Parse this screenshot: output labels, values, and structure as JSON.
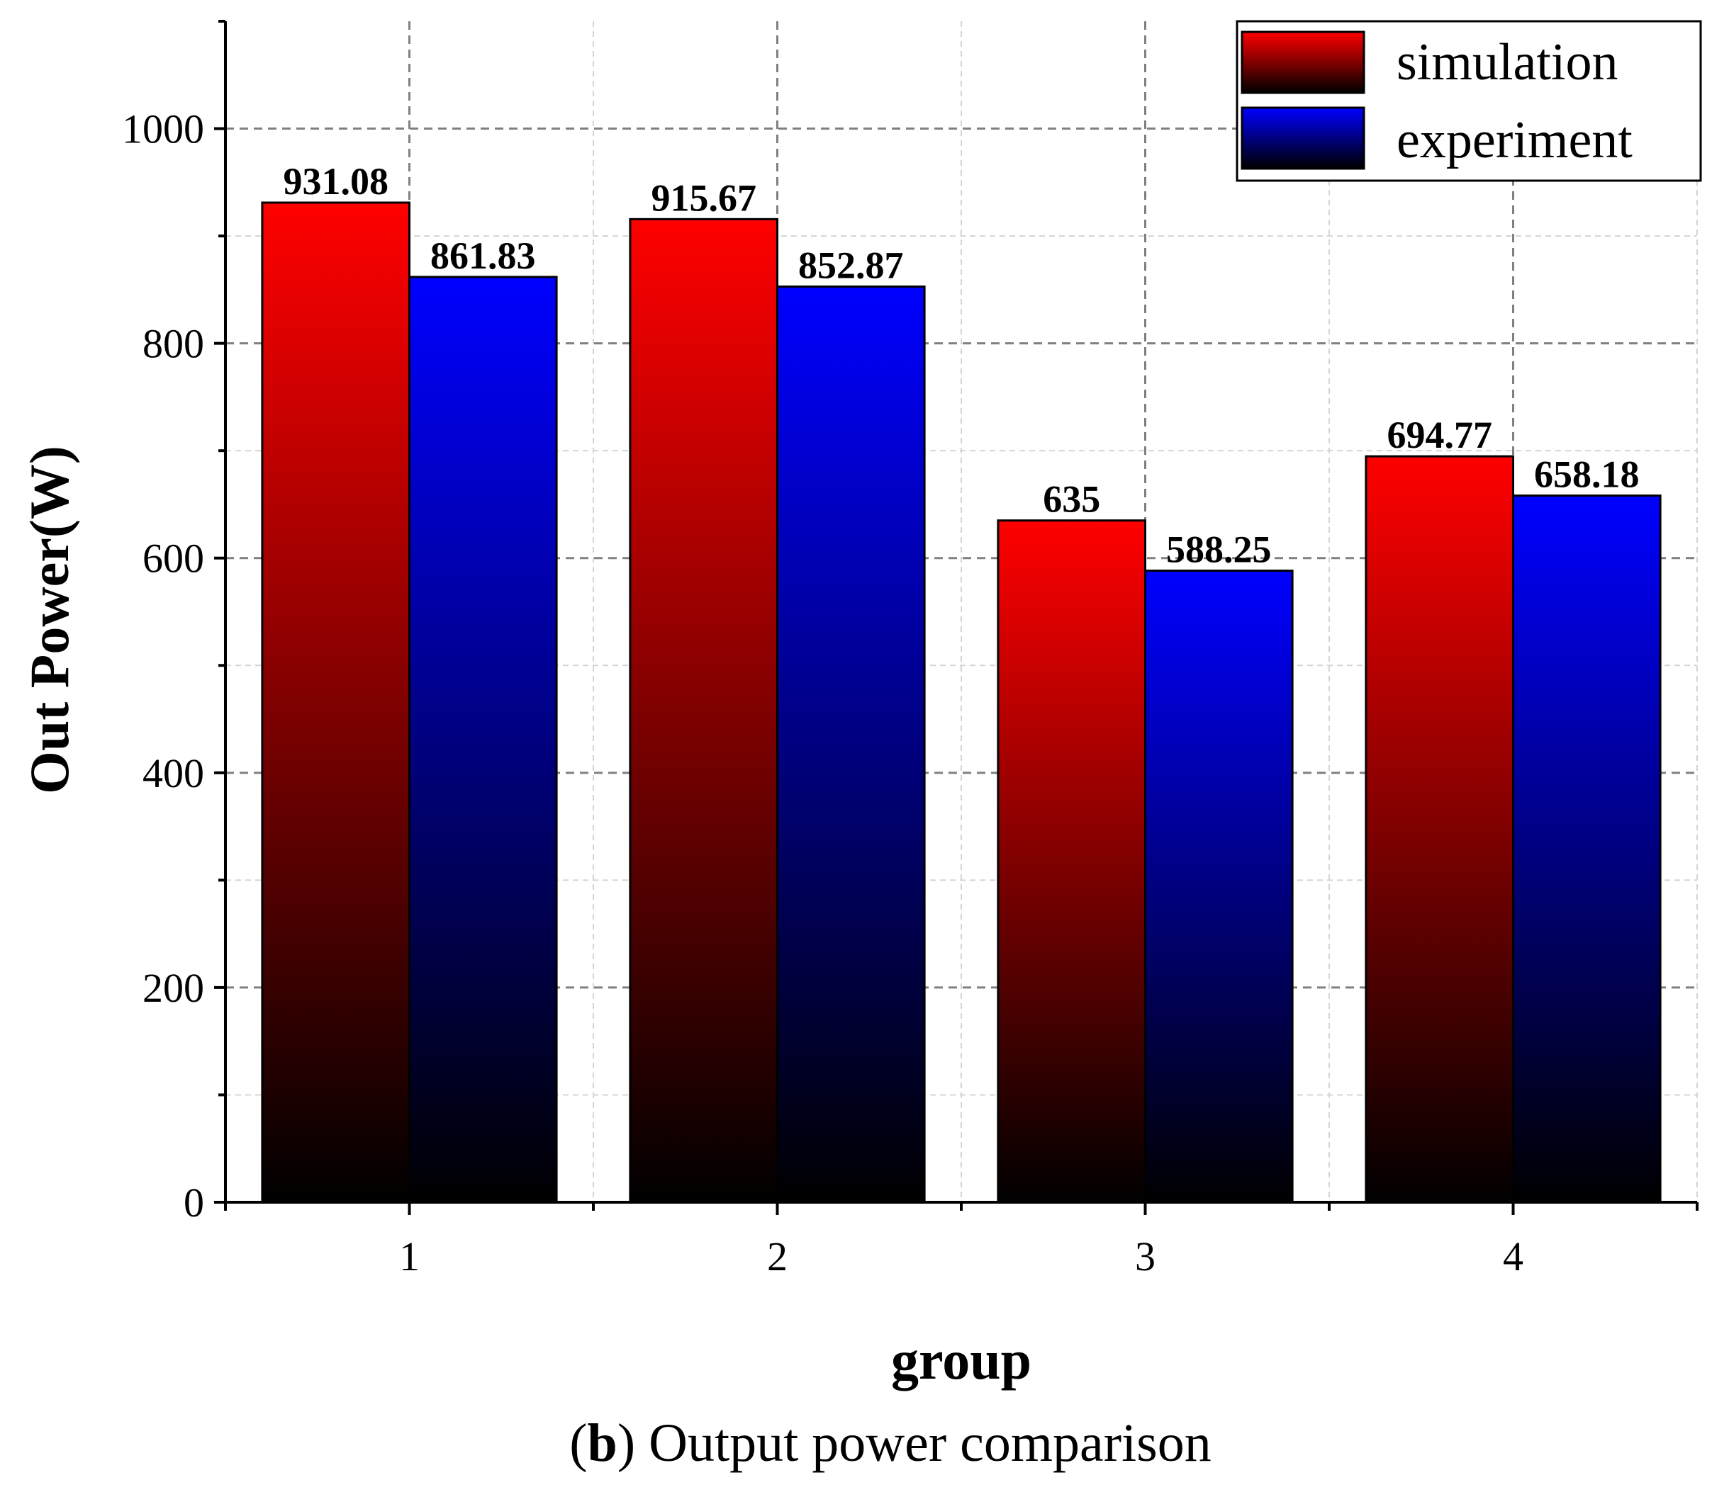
{
  "chart_data": {
    "type": "bar",
    "categories": [
      "1",
      "2",
      "3",
      "4"
    ],
    "series": [
      {
        "name": "simulation",
        "values": [
          931.08,
          915.67,
          635,
          694.77
        ],
        "labels": [
          "931.08",
          "915.67",
          "635",
          "694.77"
        ],
        "color_top": "#ff0000",
        "color_bottom": "#000000"
      },
      {
        "name": "experiment",
        "values": [
          861.83,
          852.87,
          588.25,
          658.18
        ],
        "labels": [
          "861.83",
          "852.87",
          "588.25",
          "658.18"
        ],
        "color_top": "#0000ff",
        "color_bottom": "#000000"
      }
    ],
    "xlabel": "group",
    "ylabel": "Out Power(W)",
    "ylim": [
      0,
      1100
    ],
    "yticks": [
      0,
      200,
      400,
      600,
      800,
      1000
    ],
    "grid": true,
    "legend_position": "top-right"
  },
  "caption": {
    "open_paren": "(",
    "letter": "b",
    "text": ") Output power comparison"
  }
}
